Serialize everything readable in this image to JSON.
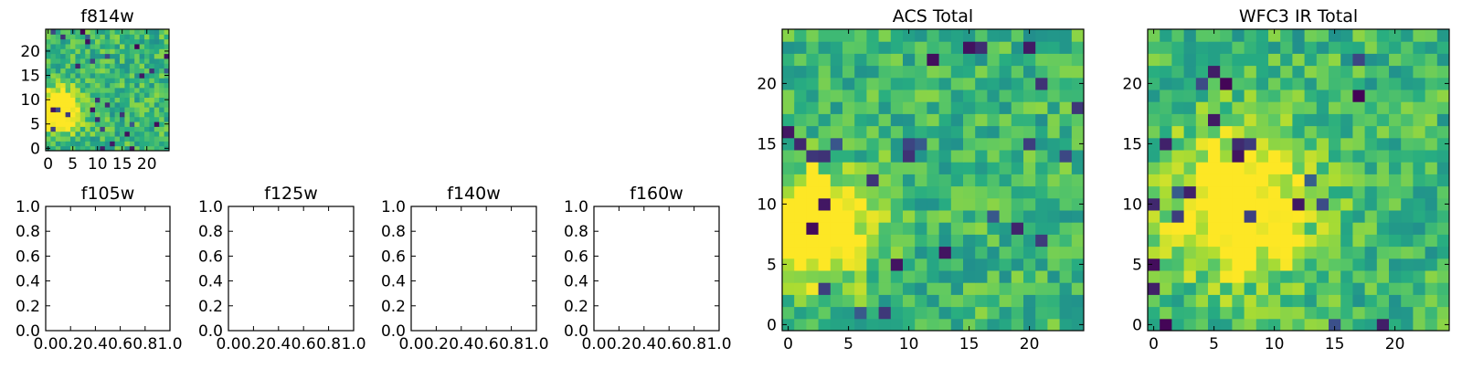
{
  "chart_data": [
    {
      "type": "heatmap",
      "title": "f814w",
      "size": 25,
      "seed": 11,
      "blob": {
        "x": 2,
        "y": 8,
        "spread": 9,
        "strength": 0.9
      },
      "xlim": [
        -0.5,
        24.5
      ],
      "ylim": [
        -0.5,
        24.5
      ],
      "xticks": [
        0,
        5,
        10,
        15,
        20
      ],
      "yticks": [
        0,
        5,
        10,
        15,
        20
      ],
      "grid": false
    },
    {
      "type": "empty",
      "title": "f105w",
      "xlim": [
        0,
        1
      ],
      "ylim": [
        0,
        1
      ],
      "xticks": [
        "0.0",
        "0.2",
        "0.4",
        "0.6",
        "0.8",
        "1.0"
      ],
      "yticks": [
        "0.0",
        "0.2",
        "0.4",
        "0.6",
        "0.8",
        "1.0"
      ]
    },
    {
      "type": "empty",
      "title": "f125w",
      "xlim": [
        0,
        1
      ],
      "ylim": [
        0,
        1
      ],
      "xticks": [
        "0.0",
        "0.2",
        "0.4",
        "0.6",
        "0.8",
        "1.0"
      ],
      "yticks": [
        "0.0",
        "0.2",
        "0.4",
        "0.6",
        "0.8",
        "1.0"
      ]
    },
    {
      "type": "empty",
      "title": "f140w",
      "xlim": [
        0,
        1
      ],
      "ylim": [
        0,
        1
      ],
      "xticks": [
        "0.0",
        "0.2",
        "0.4",
        "0.6",
        "0.8",
        "1.0"
      ],
      "yticks": [
        "0.0",
        "0.2",
        "0.4",
        "0.6",
        "0.8",
        "1.0"
      ]
    },
    {
      "type": "empty",
      "title": "f160w",
      "xlim": [
        0,
        1
      ],
      "ylim": [
        0,
        1
      ],
      "xticks": [
        "0.0",
        "0.2",
        "0.4",
        "0.6",
        "0.8",
        "1.0"
      ],
      "yticks": [
        "0.0",
        "0.2",
        "0.4",
        "0.6",
        "0.8",
        "1.0"
      ]
    },
    {
      "type": "heatmap",
      "title": "ACS Total",
      "size": 25,
      "seed": 23,
      "blob": {
        "x": 2,
        "y": 8,
        "spread": 10,
        "strength": 0.85
      },
      "xlim": [
        -0.5,
        24.5
      ],
      "ylim": [
        -0.5,
        24.5
      ],
      "xticks": [
        0,
        5,
        10,
        15,
        20
      ],
      "yticks": [
        0,
        5,
        10,
        15,
        20
      ],
      "grid": false
    },
    {
      "type": "heatmap",
      "title": "WFC3 IR Total",
      "size": 25,
      "seed": 37,
      "blob": {
        "x": 7,
        "y": 10,
        "spread": 18,
        "strength": 0.7
      },
      "xlim": [
        -0.5,
        24.5
      ],
      "ylim": [
        -0.5,
        24.5
      ],
      "xticks": [
        0,
        5,
        10,
        15,
        20
      ],
      "yticks": [
        0,
        5,
        10,
        15,
        20
      ],
      "grid": false
    }
  ],
  "colormap": [
    "#440154",
    "#3b528b",
    "#21918c",
    "#27ad81",
    "#5ec962",
    "#aadc32",
    "#fde725"
  ]
}
